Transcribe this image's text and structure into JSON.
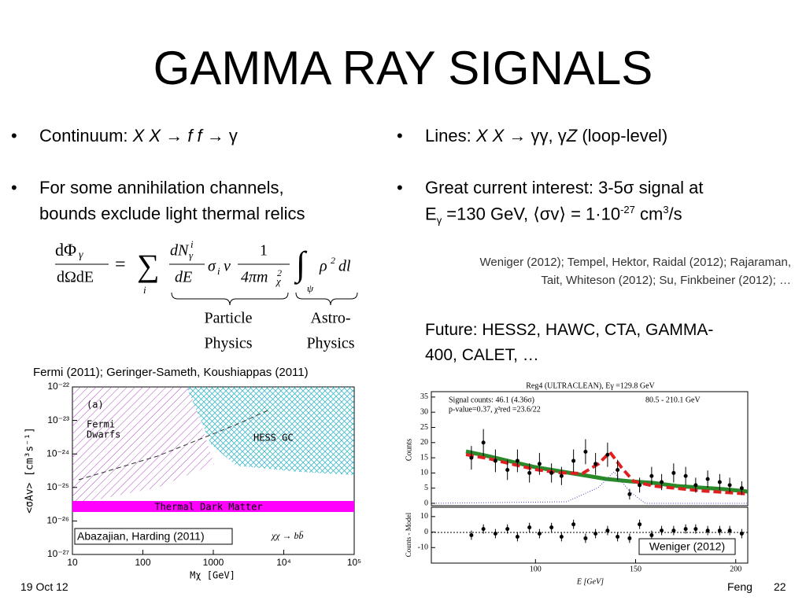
{
  "title": "GAMMA RAY SIGNALS",
  "left": {
    "bullet1": [
      "Continuum: ",
      "X X",
      " → ",
      "f f",
      " → ",
      "γ"
    ],
    "bullet2": [
      "For some annihilation channels,",
      "bounds exclude light thermal relics"
    ],
    "equation": [
      "dΦ",
      "γ",
      "dΩdE",
      "=",
      "∑",
      "i",
      "dN",
      "γ",
      "i",
      "dE",
      "σ",
      "i",
      "v",
      "1",
      "4πm",
      "χ",
      "2",
      "∫",
      "ψ",
      "ρ",
      "2",
      "dl"
    ],
    "labels": [
      "Particle",
      "Physics",
      "Astro-",
      "Physics"
    ],
    "caption": "Fermi (2011); Geringer-Sameth, Koushiappas  (2011)"
  },
  "right": {
    "bullet1": [
      "Lines: ",
      "X X",
      " → ",
      "γγ",
      ", ",
      "γ",
      "Z",
      " (loop-level)"
    ],
    "bullet2": [
      "Great current interest: 3-5",
      "σ",
      " signal at",
      "E",
      "γ",
      " =130 GeV, ",
      "⟨σv⟩",
      " = 1·10",
      "-27",
      " cm",
      "3",
      "/s"
    ],
    "refs": [
      "Weniger (2012); Tempel, Hektor, Raidal (2012); Rajaraman,",
      "Tait, Whiteson (2012); Su, Finkbeiner (2012); …"
    ],
    "future": [
      "Future: HESS2, HAWC, CTA, GAMMA-",
      "400, CALET, …"
    ]
  },
  "plot1": {
    "panel": "(a)",
    "fermi": [
      "Fermi",
      "Dwarfs"
    ],
    "hess": "HESS GC",
    "band": "Thermal Dark Matter",
    "channel": "χχ → bb̄",
    "credit": "Abazajian, Harding (2011)",
    "ylabel": "<σAv> [cm³s⁻¹]",
    "xlabel": "Mχ [GeV]",
    "log": true,
    "xlim": [
      10,
      100000
    ],
    "ylim": [
      1e-27,
      1e-22
    ],
    "xticks": [
      10,
      100,
      1000,
      {
        "value": 10000,
        "label": "10⁴"
      },
      {
        "value": 100000,
        "label": "10⁵"
      }
    ],
    "yticks": [
      {
        "value": 1e-22,
        "label": "10⁻²²"
      },
      {
        "value": 1e-23,
        "label": "10⁻²³"
      },
      {
        "value": 1e-24,
        "label": "10⁻²⁴"
      },
      {
        "value": 1e-25,
        "label": "10⁻²⁵"
      },
      {
        "value": 1e-26,
        "label": "10⁻²⁶"
      },
      {
        "value": 1e-27,
        "label": "10⁻²⁷"
      }
    ]
  },
  "plot2": {
    "title": "Reg4 (ULTRACLEAN), Eγ =129.8 GeV",
    "info": [
      "Signal counts: 46.1 (4.36σ)",
      "80.5 - 210.1 GeV",
      "p-value=0.37, χ²red =23.6/22"
    ],
    "ylabel": "Counts",
    "rlabel": "Counts - Model",
    "xlabel": "E [GeV]",
    "credit": "Weniger (2012)",
    "xlim": [
      48,
      206
    ],
    "ylim": [
      0,
      36
    ],
    "rlim": [
      -20,
      16
    ],
    "xticks": [
      100,
      150,
      200
    ],
    "yticks": [
      0,
      5,
      10,
      15,
      20,
      25,
      30,
      35
    ],
    "rticks": [
      -10,
      0,
      10
    ],
    "x": [
      68,
      74,
      80,
      86,
      91,
      97,
      102,
      108,
      113,
      119,
      125,
      130,
      136,
      141,
      147,
      152,
      158,
      163,
      169,
      175,
      180,
      186,
      192,
      197,
      203
    ],
    "counts": [
      15,
      20,
      14,
      11,
      14,
      10,
      13,
      10,
      9,
      14,
      17,
      13,
      16,
      11,
      3,
      6,
      9,
      7,
      10,
      9,
      6,
      8,
      7,
      6,
      5
    ],
    "residuals": [
      -2,
      2,
      -1,
      2,
      -3,
      3,
      -1,
      3,
      -3,
      5,
      -4,
      -1,
      1,
      -3,
      -4,
      5,
      -2,
      1,
      1,
      2,
      2,
      1,
      1,
      1,
      -1
    ]
  },
  "footer": {
    "date": "19 Oct 12",
    "author": "Feng",
    "page": "22"
  }
}
